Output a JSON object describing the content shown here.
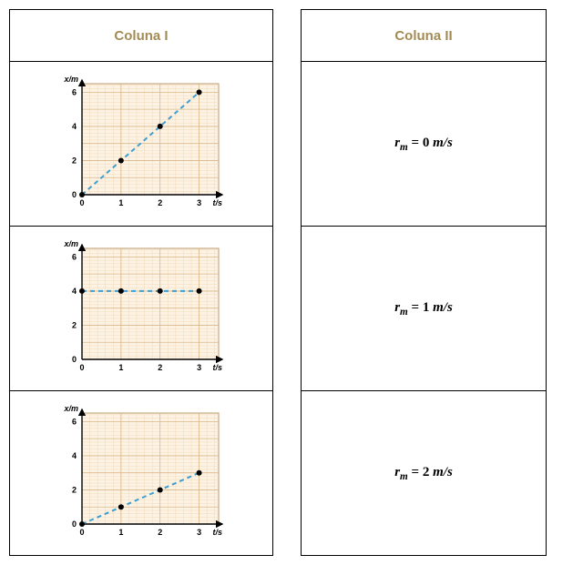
{
  "headers": {
    "col1": "Coluna I",
    "col2": "Coluna II",
    "color": "#a38b55",
    "fontsize": 15
  },
  "equations": [
    {
      "var": "r",
      "sub": "m",
      "value": "0",
      "unit": "m/s"
    },
    {
      "var": "r",
      "sub": "m",
      "value": "1",
      "unit": "m/s"
    },
    {
      "var": "r",
      "sub": "m",
      "value": "2",
      "unit": "m/s"
    }
  ],
  "charts": [
    {
      "type": "line-scatter",
      "xlabel": "t/s",
      "ylabel": "x/m",
      "xlim": [
        0,
        3.5
      ],
      "ylim": [
        0,
        6.5
      ],
      "xticks": [
        0,
        1,
        2,
        3
      ],
      "yticks": [
        0,
        2,
        4,
        6
      ],
      "minor_step": 0.2,
      "grid_minor_color": "#f2d9b8",
      "grid_major_color": "#d9b88a",
      "background": "#ffffff",
      "plot_bg": "#fdf3e4",
      "axis_color": "#000000",
      "line_color": "#3f9ed1",
      "line_width": 2,
      "dash": "5,4",
      "marker_color": "#000000",
      "marker_size": 3,
      "label_fontsize": 9,
      "tick_fontsize": 9,
      "points": [
        [
          0,
          0
        ],
        [
          1,
          2
        ],
        [
          2,
          4
        ],
        [
          3,
          6
        ]
      ]
    },
    {
      "type": "line-scatter",
      "xlabel": "t/s",
      "ylabel": "x/m",
      "xlim": [
        0,
        3.5
      ],
      "ylim": [
        0,
        6.5
      ],
      "xticks": [
        0,
        1,
        2,
        3
      ],
      "yticks": [
        0,
        2,
        4,
        6
      ],
      "minor_step": 0.2,
      "grid_minor_color": "#f2d9b8",
      "grid_major_color": "#d9b88a",
      "background": "#ffffff",
      "plot_bg": "#fdf3e4",
      "axis_color": "#000000",
      "line_color": "#3f9ed1",
      "line_width": 2,
      "dash": "5,4",
      "marker_color": "#000000",
      "marker_size": 3,
      "label_fontsize": 9,
      "tick_fontsize": 9,
      "points": [
        [
          0,
          4
        ],
        [
          1,
          4
        ],
        [
          2,
          4
        ],
        [
          3,
          4
        ]
      ]
    },
    {
      "type": "line-scatter",
      "xlabel": "t/s",
      "ylabel": "x/m",
      "xlim": [
        0,
        3.5
      ],
      "ylim": [
        0,
        6.5
      ],
      "xticks": [
        0,
        1,
        2,
        3
      ],
      "yticks": [
        0,
        2,
        4,
        6
      ],
      "minor_step": 0.2,
      "grid_minor_color": "#f2d9b8",
      "grid_major_color": "#d9b88a",
      "background": "#ffffff",
      "plot_bg": "#fdf3e4",
      "axis_color": "#000000",
      "line_color": "#3f9ed1",
      "line_width": 2,
      "dash": "5,4",
      "marker_color": "#000000",
      "marker_size": 3,
      "label_fontsize": 9,
      "tick_fontsize": 9,
      "points": [
        [
          0,
          0
        ],
        [
          1,
          1
        ],
        [
          2,
          2
        ],
        [
          3,
          3
        ]
      ]
    }
  ]
}
